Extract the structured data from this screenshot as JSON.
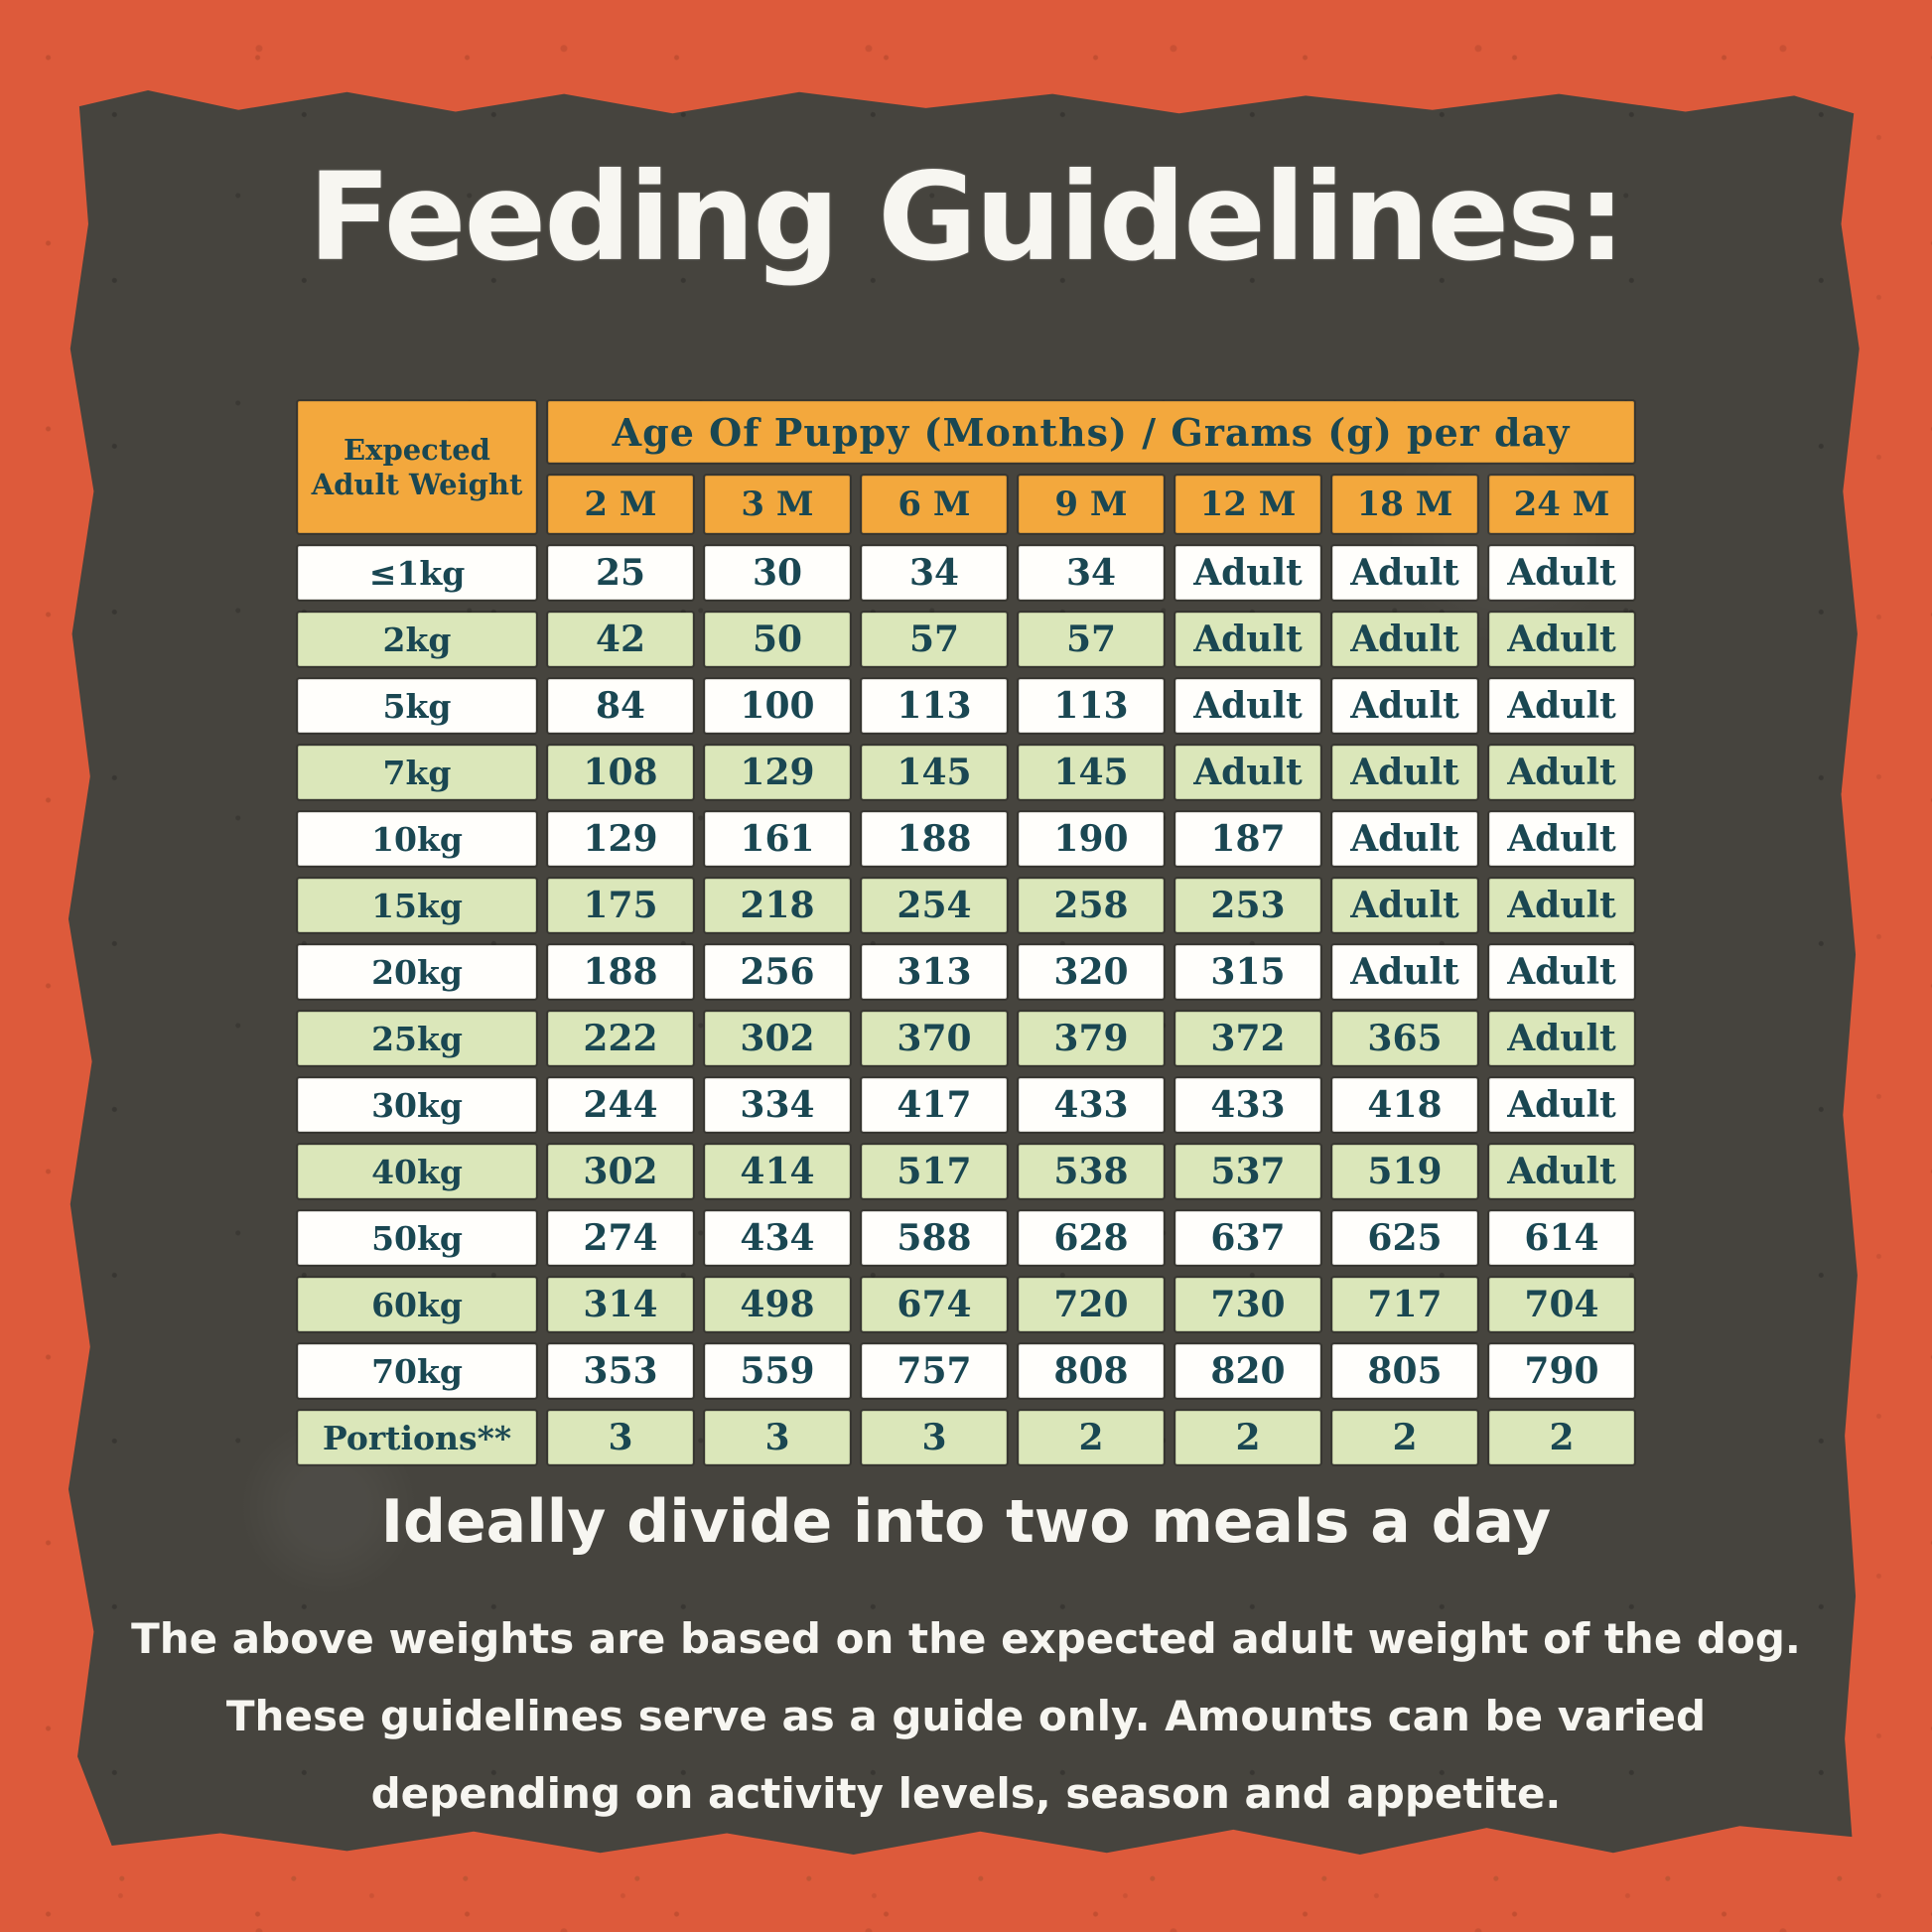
{
  "title": "Feeding Guidelines:",
  "subtitle": "Ideally divide into two meals a day",
  "notes": [
    "The above weights are based on the expected adult weight of the dog.",
    "These guidelines serve as a guide only. Amounts can be varied",
    "depending on activity levels, season and appetite."
  ],
  "colors": {
    "background_orange": "#DD5A3B",
    "panel_charcoal": "#46443E",
    "header_orange": "#F3A83D",
    "row_green": "#DBE7BA",
    "row_white": "#FFFEFB",
    "text_teal": "#1A4752",
    "text_white": "#F7F6F1"
  },
  "chart_data": {
    "type": "table",
    "title": "Feeding Guidelines:",
    "corner_header": "Expected Adult Weight",
    "span_header": "Age Of Puppy (Months) / Grams (g) per day",
    "columns": [
      "2 M",
      "3 M",
      "6 M",
      "9 M",
      "12 M",
      "18 M",
      "24 M"
    ],
    "rows": [
      {
        "label": "≤1kg",
        "values": [
          25,
          30,
          34,
          34,
          "Adult",
          "Adult",
          "Adult"
        ]
      },
      {
        "label": "2kg",
        "values": [
          42,
          50,
          57,
          57,
          "Adult",
          "Adult",
          "Adult"
        ]
      },
      {
        "label": "5kg",
        "values": [
          84,
          100,
          113,
          113,
          "Adult",
          "Adult",
          "Adult"
        ]
      },
      {
        "label": "7kg",
        "values": [
          108,
          129,
          145,
          145,
          "Adult",
          "Adult",
          "Adult"
        ]
      },
      {
        "label": "10kg",
        "values": [
          129,
          161,
          188,
          190,
          187,
          "Adult",
          "Adult"
        ]
      },
      {
        "label": "15kg",
        "values": [
          175,
          218,
          254,
          258,
          253,
          "Adult",
          "Adult"
        ]
      },
      {
        "label": "20kg",
        "values": [
          188,
          256,
          313,
          320,
          315,
          "Adult",
          "Adult"
        ]
      },
      {
        "label": "25kg",
        "values": [
          222,
          302,
          370,
          379,
          372,
          365,
          "Adult"
        ]
      },
      {
        "label": "30kg",
        "values": [
          244,
          334,
          417,
          433,
          433,
          418,
          "Adult"
        ]
      },
      {
        "label": "40kg",
        "values": [
          302,
          414,
          517,
          538,
          537,
          519,
          "Adult"
        ]
      },
      {
        "label": "50kg",
        "values": [
          274,
          434,
          588,
          628,
          637,
          625,
          614
        ]
      },
      {
        "label": "60kg",
        "values": [
          314,
          498,
          674,
          720,
          730,
          717,
          704
        ]
      },
      {
        "label": "70kg",
        "values": [
          353,
          559,
          757,
          808,
          820,
          805,
          790
        ]
      },
      {
        "label": "Portions**",
        "values": [
          3,
          3,
          3,
          2,
          2,
          2,
          2
        ]
      }
    ]
  }
}
